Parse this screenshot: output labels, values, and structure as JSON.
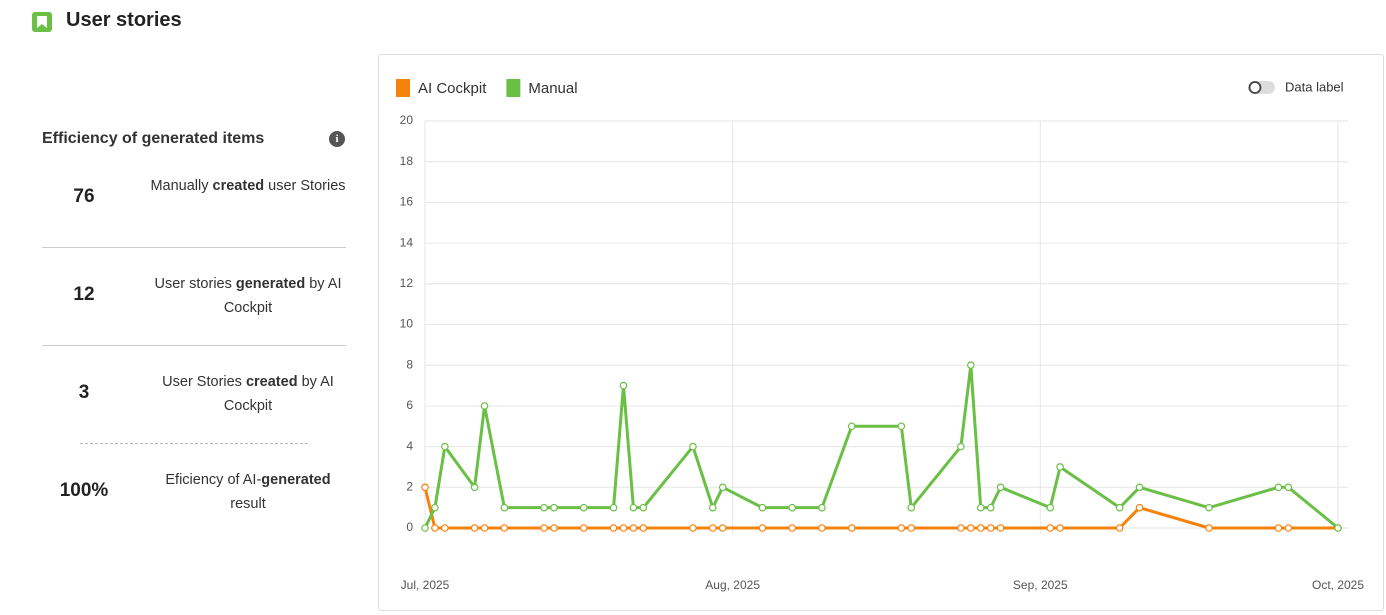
{
  "header": {
    "title": "User stories"
  },
  "efficiency": {
    "title": "Efficiency of generated items",
    "items": [
      {
        "value": "76",
        "label_parts": [
          "Manually ",
          "created",
          " user Stories"
        ]
      },
      {
        "value": "12",
        "label_parts": [
          "User stories ",
          "generated",
          " by AI Cockpit"
        ]
      },
      {
        "value": "3",
        "label_parts": [
          "User Stories ",
          "created",
          " by AI Cockpit"
        ]
      },
      {
        "value": "100%",
        "label_parts": [
          "Eficiency of AI-",
          "generated",
          " result"
        ]
      }
    ]
  },
  "chart_data": {
    "type": "line",
    "data_label_toggle": "Data label",
    "data_label": false,
    "grid": true,
    "x": [
      0,
      1,
      2,
      5,
      6,
      8,
      12,
      13,
      16,
      19,
      20,
      21,
      22,
      27,
      29,
      30,
      34,
      37,
      40,
      43,
      48,
      49,
      54,
      55,
      56,
      57,
      58,
      63,
      64,
      70,
      72,
      79,
      86,
      87,
      92
    ],
    "xlim": [
      0,
      92
    ],
    "xticks": [
      {
        "value": 0,
        "label": "Jul, 2025"
      },
      {
        "value": 31,
        "label": "Aug, 2025"
      },
      {
        "value": 62,
        "label": "Sep, 2025"
      },
      {
        "value": 92,
        "label": "Oct, 2025"
      }
    ],
    "ylim": [
      0,
      20
    ],
    "yticks": [
      0,
      2,
      4,
      6,
      8,
      10,
      12,
      14,
      16,
      18,
      20
    ],
    "series": [
      {
        "name": "AI Cockpit",
        "color": "#f5820b",
        "values": [
          2,
          0,
          0,
          0,
          0,
          0,
          0,
          0,
          0,
          0,
          0,
          0,
          0,
          0,
          0,
          0,
          0,
          0,
          0,
          0,
          0,
          0,
          0,
          0,
          0,
          0,
          0,
          0,
          0,
          0,
          1,
          0,
          0,
          0,
          0
        ]
      },
      {
        "name": "Manual",
        "color": "#6abf45",
        "values": [
          0,
          1,
          4,
          2,
          6,
          1,
          1,
          1,
          1,
          1,
          7,
          1,
          1,
          4,
          1,
          2,
          1,
          1,
          1,
          5,
          5,
          1,
          4,
          8,
          1,
          1,
          2,
          1,
          3,
          1,
          2,
          1,
          2,
          2,
          0
        ]
      }
    ]
  }
}
